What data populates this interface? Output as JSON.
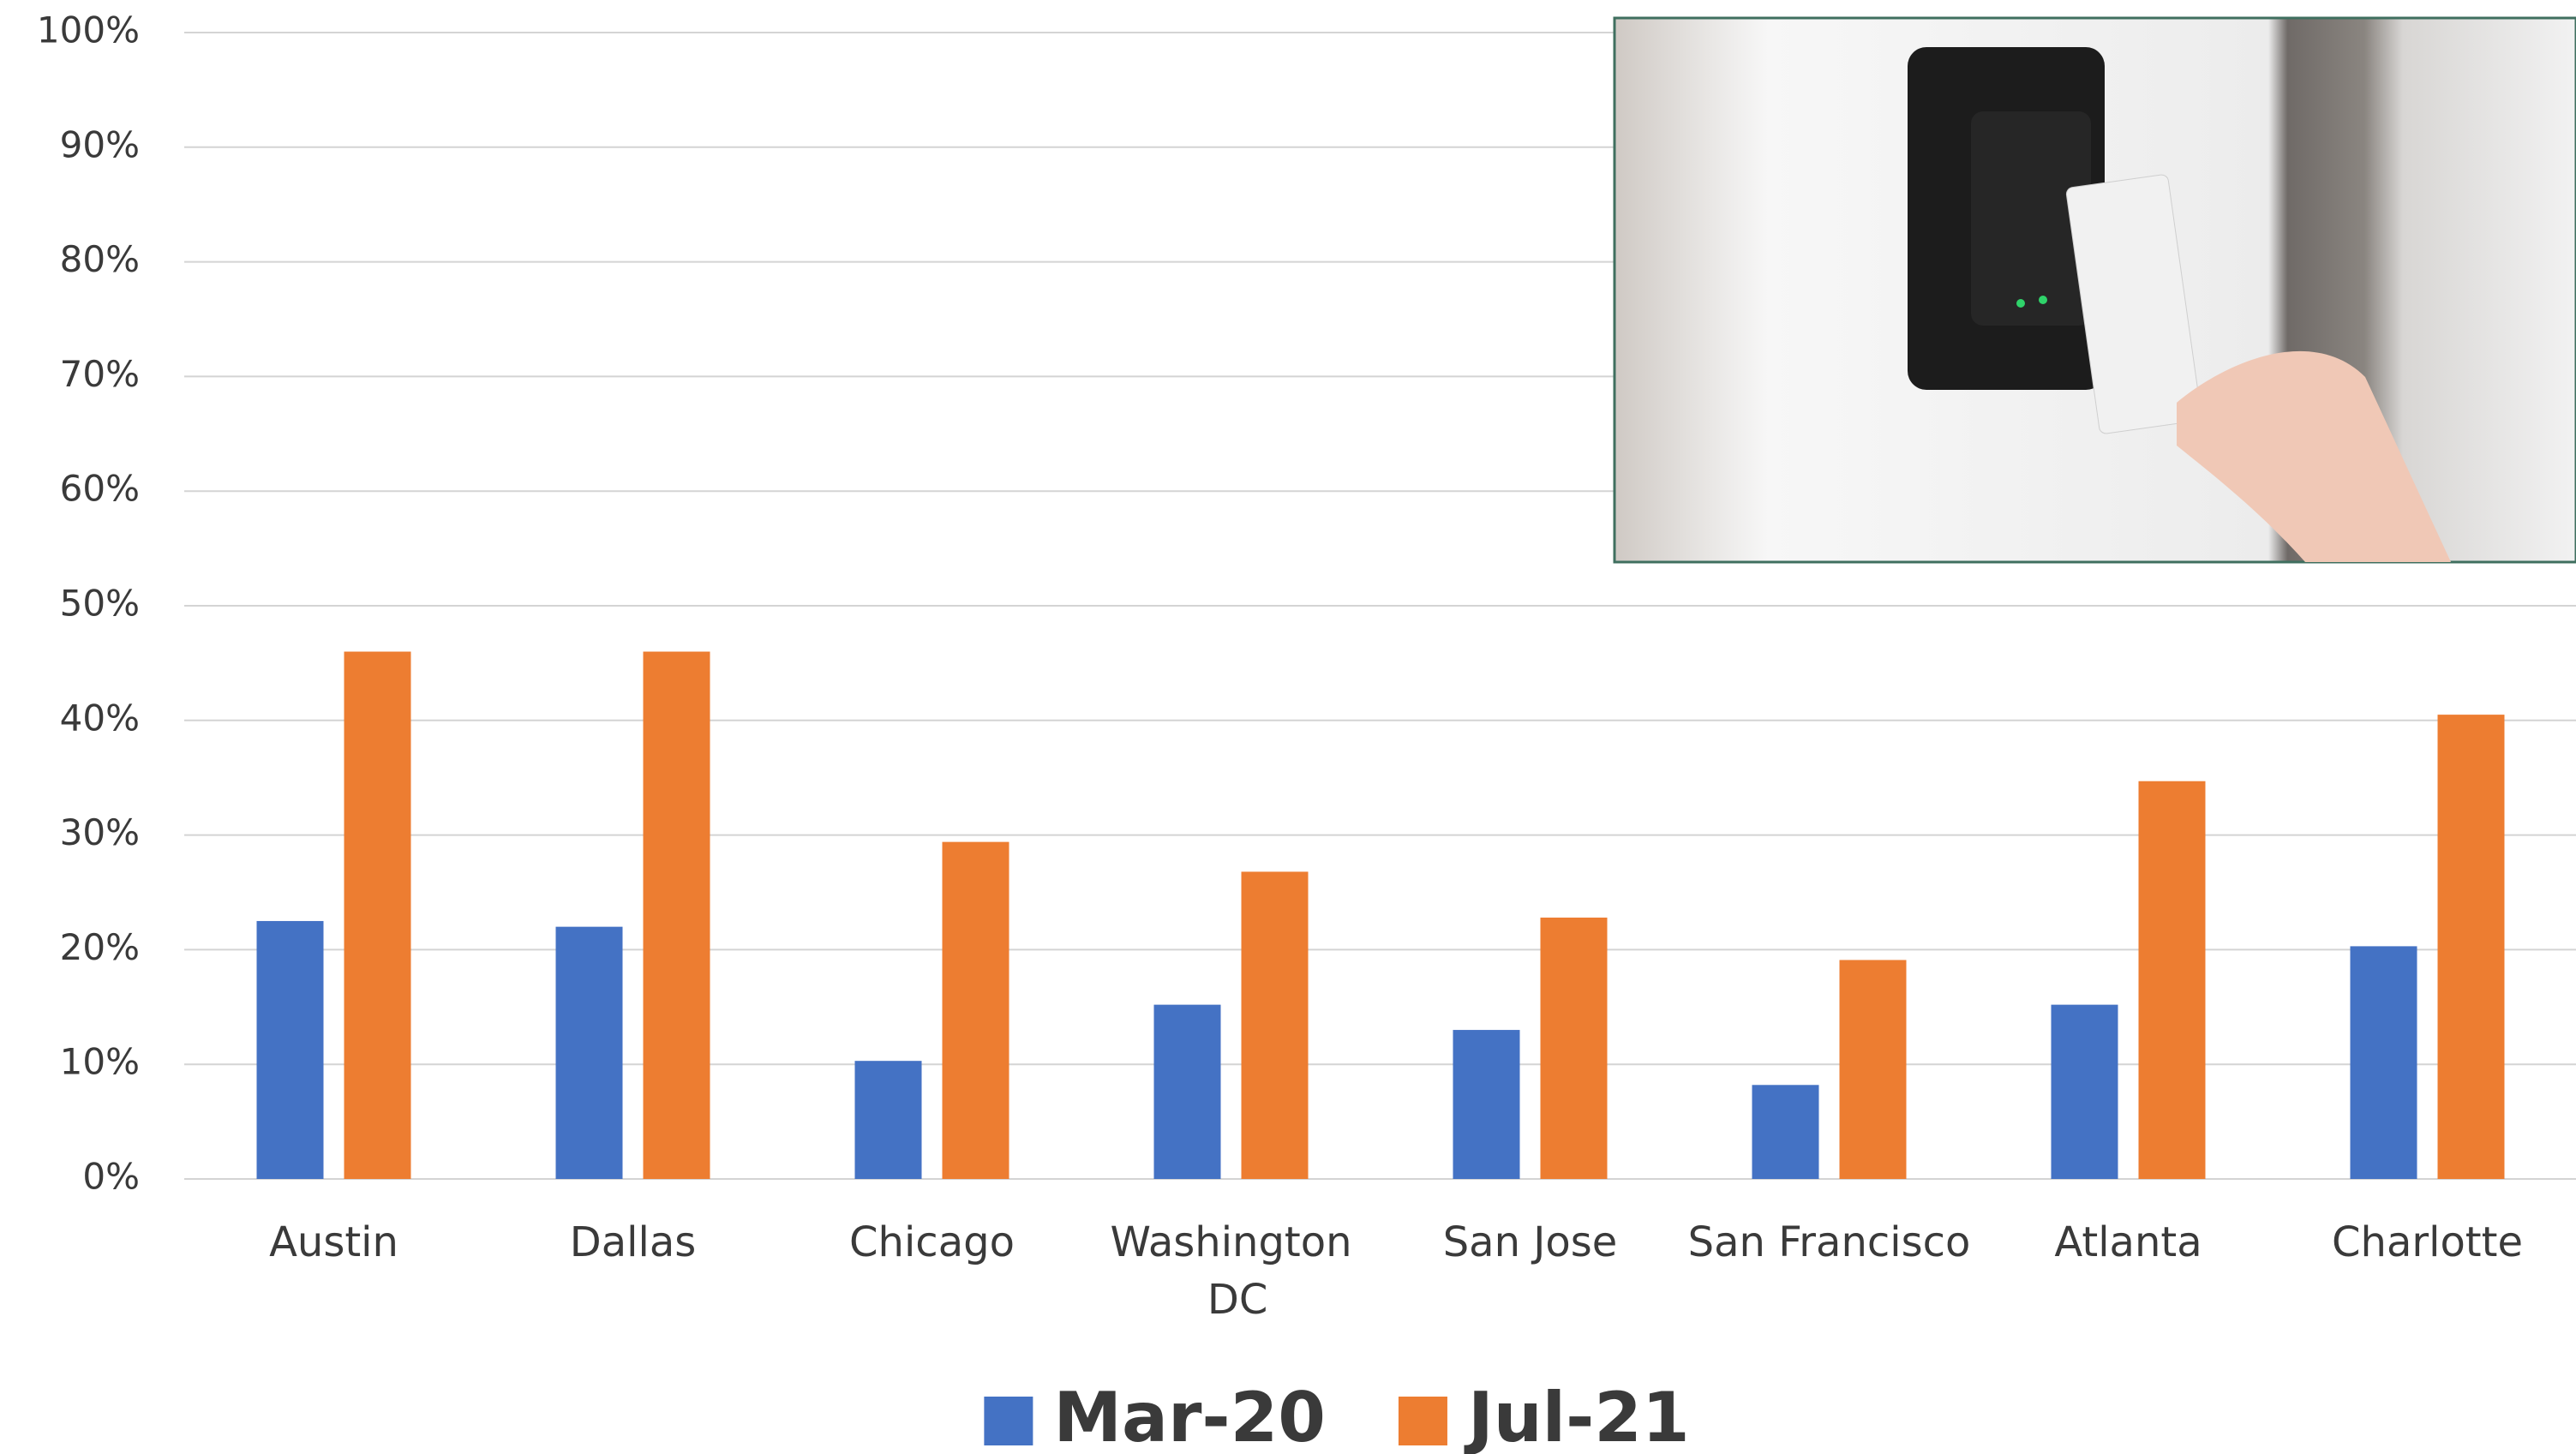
{
  "chart_data": {
    "type": "bar",
    "categories": [
      "Austin",
      "Dallas",
      "Chicago",
      "Washington DC",
      "San Jose",
      "San Francisco",
      "Atlanta",
      "Charlotte"
    ],
    "series": [
      {
        "name": "Mar-20",
        "color": "#4472c4",
        "values": [
          22.5,
          22,
          10.3,
          15.2,
          13,
          8.2,
          15.2,
          20.3
        ]
      },
      {
        "name": "Jul-21",
        "color": "#ed7d31",
        "values": [
          46,
          46,
          29.4,
          26.8,
          22.8,
          19.1,
          34.7,
          40.5
        ]
      }
    ],
    "ylim": [
      0,
      100
    ],
    "yticks": [
      {
        "value": 0,
        "label": "0%"
      },
      {
        "value": 10,
        "label": "10%"
      },
      {
        "value": 20,
        "label": "20%"
      },
      {
        "value": 30,
        "label": "30%"
      },
      {
        "value": 40,
        "label": "40%"
      },
      {
        "value": 50,
        "label": "50%"
      },
      {
        "value": 60,
        "label": "60%"
      },
      {
        "value": 70,
        "label": "70%"
      },
      {
        "value": 80,
        "label": "80%"
      },
      {
        "value": 90,
        "label": "90%"
      },
      {
        "value": 100,
        "label": "100%"
      }
    ],
    "grid": true,
    "legend": "bottom"
  }
}
